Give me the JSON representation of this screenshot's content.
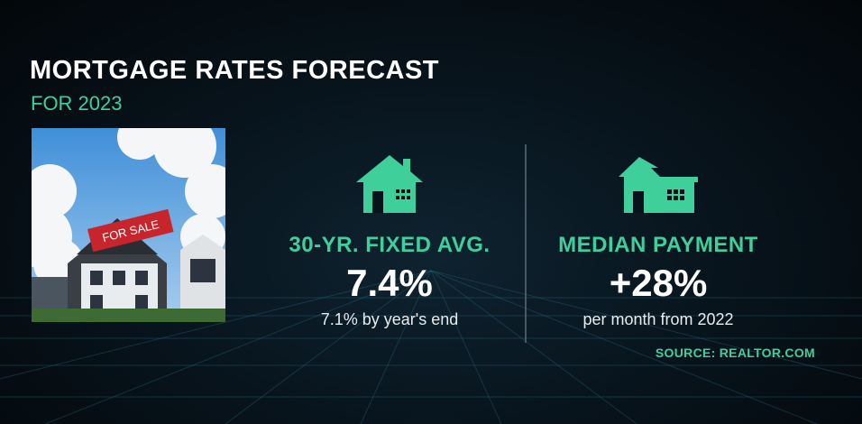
{
  "header": {
    "title": "MORTGAGE RATES FORECAST",
    "subtitle": "FOR 2023"
  },
  "photo": {
    "sign": "FOR SALE"
  },
  "stats": [
    {
      "label": "30-YR. FIXED AVG.",
      "value": "7.4%",
      "note": "7.1% by year's end"
    },
    {
      "label": "MEDIAN PAYMENT",
      "value": "+28%",
      "note": "per month from 2022"
    }
  ],
  "source": "SOURCE: REALTOR.COM"
}
